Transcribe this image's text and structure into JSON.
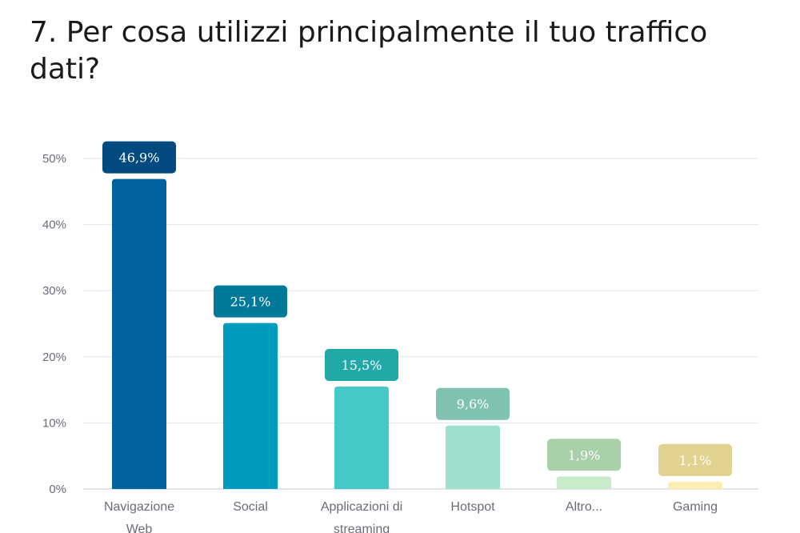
{
  "title": "7. Per cosa utilizzi principalmente il tuo traffico dati?",
  "colors": {
    "bars": [
      "#00639d",
      "#009cbd",
      "#47c8c8",
      "#9edfcd",
      "#c8ebcb",
      "#fbeeb0"
    ],
    "labels": [
      "#014b80",
      "#017a99",
      "#21a8a7",
      "#7fc2b1",
      "#a9d1a9",
      "#e0d38f"
    ],
    "grid": "#e3e3e8",
    "baseline": "#c9c9d2"
  },
  "chart_data": {
    "type": "bar",
    "categories": [
      "Navigazione Web",
      "Social",
      "Applicazioni di streaming",
      "Hotspot",
      "Altro...",
      "Gaming"
    ],
    "category_lines": [
      [
        "Navigazione",
        "Web"
      ],
      [
        "Social"
      ],
      [
        "Applicazioni di",
        "streaming"
      ],
      [
        "Hotspot"
      ],
      [
        "Altro..."
      ],
      [
        "Gaming"
      ]
    ],
    "values": [
      46.9,
      25.1,
      15.5,
      9.6,
      1.9,
      1.1
    ],
    "value_labels": [
      "46,9%",
      "25,1%",
      "15,5%",
      "9,6%",
      "1,9%",
      "1,1%"
    ],
    "y_ticks": [
      0,
      10,
      20,
      30,
      40,
      50
    ],
    "y_tick_labels": [
      "0%",
      "10%",
      "20%",
      "30%",
      "40%",
      "50%"
    ],
    "ylim": [
      0,
      50
    ],
    "grid": true
  }
}
